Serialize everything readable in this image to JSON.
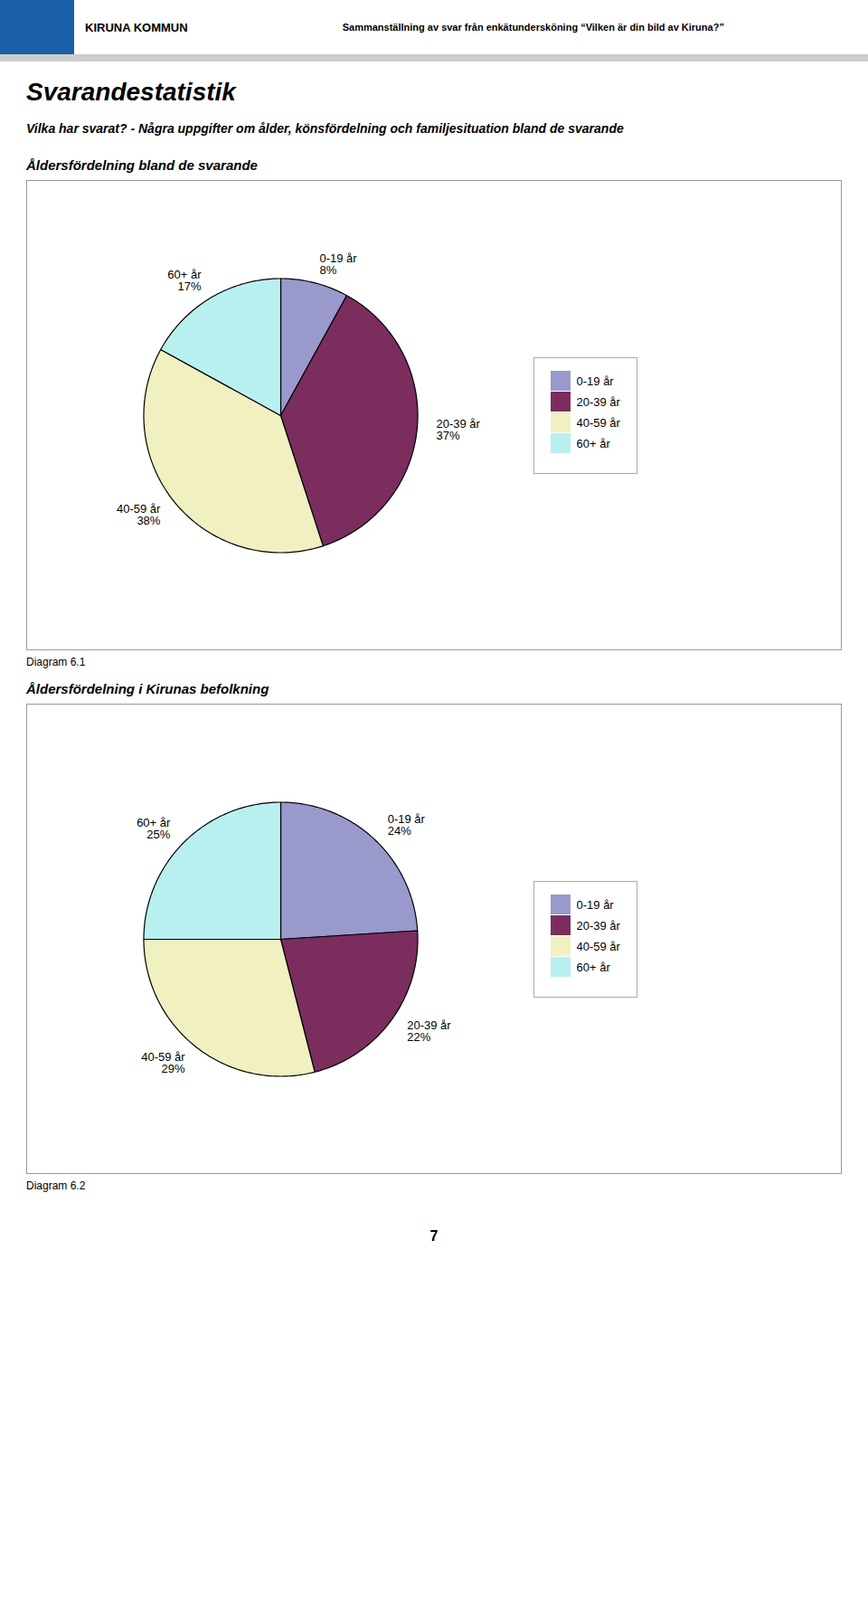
{
  "title": "Svarandestatistik",
  "subtitle": "Vilka har svarat? - Några uppgifter om ålder, könsfördelning och familjesituation bland de svarande",
  "annotations": [
    "KIRUNA KOMMUN",
    "Sammanställning av svar från enkätundersköning “Vilken är din bild av Kiruna?”",
    "7"
  ],
  "chart_data": [
    {
      "type": "pie",
      "title": "Åldersfördelning bland de svarande",
      "categories": [
        "0-19 år",
        "20-39 år",
        "40-59 år",
        "60+ år"
      ],
      "values": [
        8,
        37,
        38,
        17
      ],
      "value_labels": [
        "8%",
        "37%",
        "38%",
        "17%"
      ],
      "colors": [
        "#9999cc",
        "#7b2d5e",
        "#f0f0c0",
        "#b8f0f0"
      ],
      "data_labels": true,
      "legend": "right",
      "annotations": [
        "Diagram 6.1"
      ]
    },
    {
      "type": "pie",
      "title": "Åldersfördelning i Kirunas befolkning",
      "categories": [
        "0-19 år",
        "20-39 år",
        "40-59 år",
        "60+ år"
      ],
      "values": [
        24,
        22,
        29,
        25
      ],
      "value_labels": [
        "24%",
        "22%",
        "29%",
        "25%"
      ],
      "colors": [
        "#9999cc",
        "#7b2d5e",
        "#f0f0c0",
        "#b8f0f0"
      ],
      "data_labels": true,
      "legend": "right",
      "annotations": [
        "Diagram 6.2"
      ]
    }
  ]
}
